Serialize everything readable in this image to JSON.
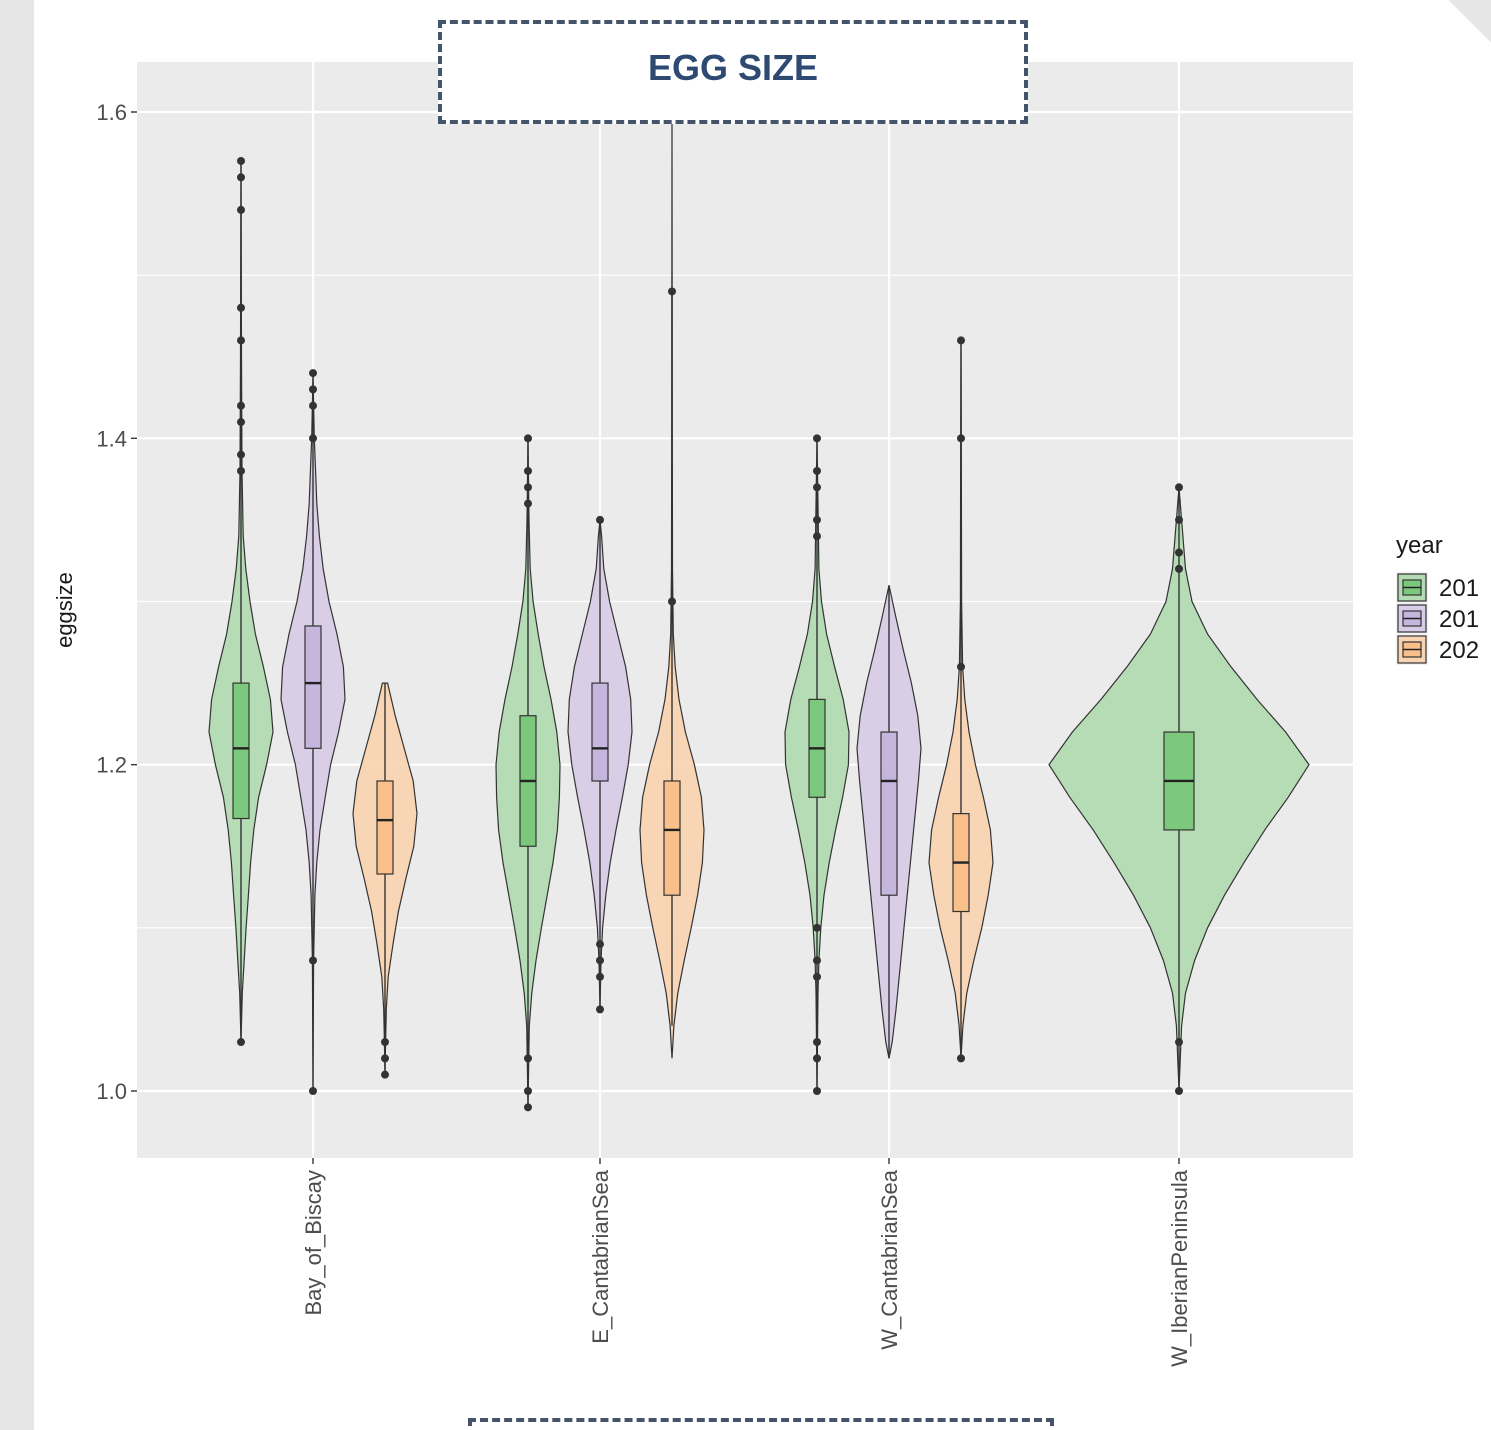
{
  "slide": {
    "title": "EGG SIZE"
  },
  "chart_data": {
    "type": "violin",
    "ylabel": "eggsize",
    "ylim": [
      0.96,
      1.63
    ],
    "yticks": [
      1.0,
      1.2,
      1.4,
      1.6
    ],
    "ytick_labels": [
      "1.0",
      "1.2",
      "1.4",
      "1.6"
    ],
    "categories": [
      "Bay_of_Biscay",
      "E_CantabrianSea",
      "W_CantabrianSea",
      "W_IberianPeninsula"
    ],
    "legend": {
      "title": "year",
      "placement": "right",
      "entries": [
        "201",
        "201",
        "202"
      ]
    },
    "colors": {
      "panel_bg": "#ebebeb",
      "grid": "#ffffff",
      "series_fill": [
        "#b3dbb3",
        "#d8cce6",
        "#f8d4b2"
      ],
      "series_box": [
        "#7cc87c",
        "#c6b5dc",
        "#f9c08c"
      ]
    },
    "groups": [
      {
        "category": "Bay_of_Biscay",
        "series": 0,
        "box": {
          "q1": 1.167,
          "median": 1.21,
          "q3": 1.25,
          "lo": 1.06,
          "hi": 1.37
        },
        "violin": [
          [
            1.03,
            0.0
          ],
          [
            1.06,
            0.04
          ],
          [
            1.08,
            0.1
          ],
          [
            1.1,
            0.16
          ],
          [
            1.12,
            0.23
          ],
          [
            1.14,
            0.3
          ],
          [
            1.16,
            0.4
          ],
          [
            1.18,
            0.55
          ],
          [
            1.2,
            0.8
          ],
          [
            1.22,
            1.0
          ],
          [
            1.24,
            0.92
          ],
          [
            1.26,
            0.7
          ],
          [
            1.28,
            0.45
          ],
          [
            1.3,
            0.28
          ],
          [
            1.32,
            0.15
          ],
          [
            1.34,
            0.07
          ],
          [
            1.38,
            0.03
          ],
          [
            1.45,
            0.015
          ],
          [
            1.57,
            0.0
          ]
        ],
        "outliers": [
          1.03,
          1.38,
          1.39,
          1.41,
          1.42,
          1.46,
          1.48,
          1.54,
          1.56,
          1.57
        ]
      },
      {
        "category": "Bay_of_Biscay",
        "series": 1,
        "box": {
          "q1": 1.21,
          "median": 1.25,
          "q3": 1.285,
          "lo": 1.11,
          "hi": 1.39
        },
        "violin": [
          [
            1.0,
            0.0
          ],
          [
            1.08,
            0.02
          ],
          [
            1.12,
            0.06
          ],
          [
            1.14,
            0.12
          ],
          [
            1.16,
            0.22
          ],
          [
            1.18,
            0.38
          ],
          [
            1.2,
            0.55
          ],
          [
            1.22,
            0.8
          ],
          [
            1.24,
            1.0
          ],
          [
            1.26,
            0.95
          ],
          [
            1.28,
            0.75
          ],
          [
            1.3,
            0.5
          ],
          [
            1.32,
            0.32
          ],
          [
            1.34,
            0.2
          ],
          [
            1.36,
            0.12
          ],
          [
            1.38,
            0.08
          ],
          [
            1.4,
            0.04
          ],
          [
            1.44,
            0.0
          ]
        ],
        "outliers": [
          1.0,
          1.08,
          1.4,
          1.42,
          1.43,
          1.44
        ]
      },
      {
        "category": "Bay_of_Biscay",
        "series": 2,
        "box": {
          "q1": 1.133,
          "median": 1.166,
          "q3": 1.19,
          "lo": 1.06,
          "hi": 1.25
        },
        "violin": [
          [
            1.01,
            0.0
          ],
          [
            1.03,
            0.02
          ],
          [
            1.05,
            0.04
          ],
          [
            1.07,
            0.1
          ],
          [
            1.09,
            0.25
          ],
          [
            1.11,
            0.42
          ],
          [
            1.13,
            0.65
          ],
          [
            1.15,
            0.9
          ],
          [
            1.17,
            1.0
          ],
          [
            1.19,
            0.88
          ],
          [
            1.21,
            0.6
          ],
          [
            1.23,
            0.32
          ],
          [
            1.25,
            0.08
          ]
        ],
        "outliers": [
          1.01,
          1.02,
          1.03
        ]
      },
      {
        "category": "E_CantabrianSea",
        "series": 0,
        "box": {
          "q1": 1.15,
          "median": 1.19,
          "q3": 1.23,
          "lo": 1.05,
          "hi": 1.32
        },
        "violin": [
          [
            0.99,
            0.0
          ],
          [
            1.04,
            0.04
          ],
          [
            1.06,
            0.12
          ],
          [
            1.08,
            0.25
          ],
          [
            1.1,
            0.42
          ],
          [
            1.12,
            0.6
          ],
          [
            1.14,
            0.78
          ],
          [
            1.16,
            0.92
          ],
          [
            1.18,
            0.98
          ],
          [
            1.2,
            1.0
          ],
          [
            1.22,
            0.9
          ],
          [
            1.24,
            0.72
          ],
          [
            1.26,
            0.5
          ],
          [
            1.28,
            0.32
          ],
          [
            1.3,
            0.16
          ],
          [
            1.32,
            0.07
          ],
          [
            1.35,
            0.03
          ],
          [
            1.4,
            0.0
          ]
        ],
        "outliers": [
          0.99,
          1.0,
          1.02,
          1.36,
          1.37,
          1.38,
          1.4
        ]
      },
      {
        "category": "E_CantabrianSea",
        "series": 1,
        "box": {
          "q1": 1.19,
          "median": 1.21,
          "q3": 1.25,
          "lo": 1.11,
          "hi": 1.31
        },
        "violin": [
          [
            1.05,
            0.0
          ],
          [
            1.08,
            0.03
          ],
          [
            1.1,
            0.08
          ],
          [
            1.12,
            0.18
          ],
          [
            1.14,
            0.32
          ],
          [
            1.16,
            0.5
          ],
          [
            1.18,
            0.7
          ],
          [
            1.2,
            0.88
          ],
          [
            1.22,
            1.0
          ],
          [
            1.24,
            0.96
          ],
          [
            1.26,
            0.8
          ],
          [
            1.28,
            0.55
          ],
          [
            1.3,
            0.3
          ],
          [
            1.32,
            0.12
          ],
          [
            1.34,
            0.05
          ],
          [
            1.35,
            0.0
          ]
        ],
        "outliers": [
          1.05,
          1.07,
          1.08,
          1.09,
          1.35
        ]
      },
      {
        "category": "E_CantabrianSea",
        "series": 2,
        "box": {
          "q1": 1.12,
          "median": 1.16,
          "q3": 1.19,
          "lo": 1.04,
          "hi": 1.28
        },
        "violin": [
          [
            1.02,
            0.0
          ],
          [
            1.04,
            0.06
          ],
          [
            1.06,
            0.18
          ],
          [
            1.08,
            0.38
          ],
          [
            1.1,
            0.6
          ],
          [
            1.12,
            0.8
          ],
          [
            1.14,
            0.95
          ],
          [
            1.16,
            1.0
          ],
          [
            1.18,
            0.92
          ],
          [
            1.2,
            0.7
          ],
          [
            1.22,
            0.42
          ],
          [
            1.24,
            0.22
          ],
          [
            1.26,
            0.1
          ],
          [
            1.28,
            0.04
          ],
          [
            1.32,
            0.015
          ],
          [
            1.4,
            0.008
          ],
          [
            1.6,
            0.0
          ]
        ],
        "outliers": [
          1.3,
          1.49
        ]
      },
      {
        "category": "W_CantabrianSea",
        "series": 0,
        "box": {
          "q1": 1.18,
          "median": 1.21,
          "q3": 1.24,
          "lo": 1.11,
          "hi": 1.33
        },
        "violin": [
          [
            1.0,
            0.0
          ],
          [
            1.06,
            0.03
          ],
          [
            1.08,
            0.06
          ],
          [
            1.1,
            0.12
          ],
          [
            1.12,
            0.22
          ],
          [
            1.14,
            0.38
          ],
          [
            1.16,
            0.58
          ],
          [
            1.18,
            0.8
          ],
          [
            1.2,
            0.98
          ],
          [
            1.22,
            1.0
          ],
          [
            1.24,
            0.82
          ],
          [
            1.26,
            0.55
          ],
          [
            1.28,
            0.3
          ],
          [
            1.3,
            0.14
          ],
          [
            1.32,
            0.06
          ],
          [
            1.36,
            0.03
          ],
          [
            1.4,
            0.0
          ]
        ],
        "outliers": [
          1.0,
          1.02,
          1.03,
          1.07,
          1.08,
          1.1,
          1.34,
          1.35,
          1.37,
          1.38,
          1.4
        ]
      },
      {
        "category": "W_CantabrianSea",
        "series": 1,
        "box": {
          "q1": 1.12,
          "median": 1.19,
          "q3": 1.22,
          "lo": 1.02,
          "hi": 1.31
        },
        "violin": [
          [
            1.02,
            0.0
          ],
          [
            1.03,
            0.1
          ],
          [
            1.05,
            0.22
          ],
          [
            1.07,
            0.32
          ],
          [
            1.09,
            0.42
          ],
          [
            1.11,
            0.52
          ],
          [
            1.13,
            0.62
          ],
          [
            1.15,
            0.72
          ],
          [
            1.17,
            0.82
          ],
          [
            1.19,
            0.92
          ],
          [
            1.21,
            1.0
          ],
          [
            1.23,
            0.9
          ],
          [
            1.25,
            0.7
          ],
          [
            1.27,
            0.45
          ],
          [
            1.29,
            0.22
          ],
          [
            1.31,
            0.0
          ]
        ],
        "outliers": []
      },
      {
        "category": "W_CantabrianSea",
        "series": 2,
        "box": {
          "q1": 1.11,
          "median": 1.14,
          "q3": 1.17,
          "lo": 1.04,
          "hi": 1.25
        },
        "violin": [
          [
            1.02,
            0.0
          ],
          [
            1.04,
            0.06
          ],
          [
            1.06,
            0.18
          ],
          [
            1.08,
            0.4
          ],
          [
            1.1,
            0.65
          ],
          [
            1.12,
            0.85
          ],
          [
            1.14,
            1.0
          ],
          [
            1.16,
            0.92
          ],
          [
            1.18,
            0.7
          ],
          [
            1.2,
            0.45
          ],
          [
            1.22,
            0.25
          ],
          [
            1.24,
            0.12
          ],
          [
            1.26,
            0.05
          ],
          [
            1.3,
            0.02
          ],
          [
            1.4,
            0.01
          ],
          [
            1.46,
            0.0
          ]
        ],
        "outliers": [
          1.02,
          1.26,
          1.4,
          1.46
        ]
      },
      {
        "category": "W_IberianPeninsula",
        "series": 0,
        "box": {
          "q1": 1.16,
          "median": 1.19,
          "q3": 1.22,
          "lo": 1.06,
          "hi": 1.31
        },
        "violin": [
          [
            1.0,
            0.0
          ],
          [
            1.04,
            0.02
          ],
          [
            1.06,
            0.05
          ],
          [
            1.08,
            0.12
          ],
          [
            1.1,
            0.22
          ],
          [
            1.12,
            0.35
          ],
          [
            1.14,
            0.5
          ],
          [
            1.16,
            0.66
          ],
          [
            1.18,
            0.84
          ],
          [
            1.2,
            1.0
          ],
          [
            1.22,
            0.82
          ],
          [
            1.24,
            0.6
          ],
          [
            1.26,
            0.4
          ],
          [
            1.28,
            0.22
          ],
          [
            1.3,
            0.1
          ],
          [
            1.32,
            0.05
          ],
          [
            1.35,
            0.02
          ],
          [
            1.37,
            0.0
          ]
        ],
        "outliers": [
          1.0,
          1.03,
          1.32,
          1.33,
          1.35,
          1.37
        ]
      }
    ]
  }
}
